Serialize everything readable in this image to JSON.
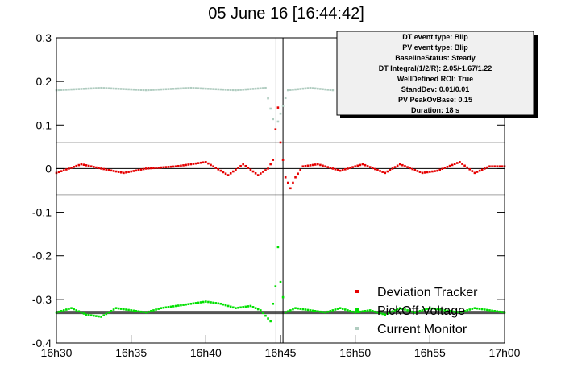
{
  "chart_data": {
    "type": "scatter",
    "title": "05 June 16 [16:44:42]",
    "xlabel": "",
    "ylabel": "",
    "x_ticks": [
      "16h30",
      "16h35",
      "16h40",
      "16h45",
      "16h50",
      "16h55",
      "17h00"
    ],
    "ylim": [
      -0.4,
      0.3
    ],
    "y_ticks": [
      "-0.4",
      "-0.3",
      "-0.2",
      "-0.1",
      "0",
      "0.1",
      "0.2",
      "0.3"
    ],
    "event_window_markers": [
      "16h44m42s",
      "16h45m10s"
    ],
    "reference_lines": [
      0.06,
      -0.06,
      0,
      -0.33
    ],
    "series": [
      {
        "name": "Deviation Tracker",
        "color": "#e60000",
        "x": [
          "16h30m00s",
          "16h31m40s",
          "16h33m00s",
          "16h34m30s",
          "16h36m00s",
          "16h38m00s",
          "16h40m00s",
          "16h41m30s",
          "16h42m30s",
          "16h43m30s",
          "16h44m10s",
          "16h44m30s",
          "16h44m40s",
          "16h44m50s",
          "16h45m00s",
          "16h45m20s",
          "16h45m40s",
          "16h46m00s",
          "16h46m30s",
          "16h47m30s",
          "16h49m00s",
          "16h50m30s",
          "16h52m00s",
          "16h53m00s",
          "16h54m30s",
          "16h55m30s",
          "16h57m00s",
          "16h58m00s",
          "16h59m00s",
          "17h00m00s"
        ],
        "values": [
          -0.01,
          0.01,
          0,
          -0.01,
          0,
          0.005,
          0.015,
          -0.015,
          0.01,
          -0.015,
          0,
          0.02,
          0.09,
          0.14,
          0.06,
          -0.02,
          -0.045,
          -0.02,
          0.005,
          0.01,
          -0.005,
          0.01,
          -0.01,
          0.01,
          -0.01,
          -0.005,
          0.015,
          -0.01,
          0.005,
          0.005
        ]
      },
      {
        "name": "PickOff Voltage",
        "color": "#00e000",
        "x": [
          "16h30m00s",
          "16h31m00s",
          "16h32m00s",
          "16h33m00s",
          "16h34m00s",
          "16h35m00s",
          "16h36m00s",
          "16h37m00s",
          "16h38m00s",
          "16h39m00s",
          "16h40m00s",
          "16h41m00s",
          "16h42m00s",
          "16h43m00s",
          "16h43m40s",
          "16h44m20s",
          "16h44m40s",
          "16h44m50s",
          "16h45m00s",
          "16h45m20s",
          "16h46m00s",
          "16h47m00s",
          "16h48m00s",
          "16h49m00s",
          "16h50m00s",
          "16h51m00s",
          "16h52m00s",
          "16h53m00s",
          "16h54m00s",
          "16h55m00s",
          "16h56m00s",
          "16h57m00s",
          "16h58m00s",
          "16h59m00s",
          "17h00m00s"
        ],
        "values": [
          -0.33,
          -0.32,
          -0.335,
          -0.34,
          -0.32,
          -0.325,
          -0.33,
          -0.32,
          -0.315,
          -0.31,
          -0.305,
          -0.31,
          -0.32,
          -0.315,
          -0.325,
          -0.35,
          -0.27,
          -0.18,
          -0.26,
          -0.33,
          -0.32,
          -0.325,
          -0.33,
          -0.32,
          -0.33,
          -0.325,
          -0.335,
          -0.32,
          -0.33,
          -0.32,
          -0.325,
          -0.33,
          -0.32,
          -0.325,
          -0.33
        ]
      },
      {
        "name": "Current Monitor",
        "color": "#b0ccc0",
        "x": [
          "16h30m00s",
          "16h33m00s",
          "16h36m00s",
          "16h39m00s",
          "16h42m00s",
          "16h44m00s",
          "16h44m40s",
          "16h45m30s",
          "16h47m00s",
          "16h48m30s"
        ],
        "values": [
          0.18,
          0.185,
          0.18,
          0.185,
          0.18,
          0.185,
          0.09,
          0.18,
          0.185,
          0.18
        ]
      }
    ],
    "legend": [
      "Deviation Tracker",
      "PickOff Voltage",
      "Current Monitor"
    ],
    "legend_position": "bottom-right",
    "stats_box": [
      "DT event type: Blip",
      "PV event type: Blip",
      "BaselineStatus: Steady",
      "DT Integral(1/2/R): 2.05/-1.67/1.22",
      "WellDefined ROI: True",
      "StandDev: 0.01/0.01",
      "PV PeakOvBase: 0.15",
      "Duration: 18 s"
    ],
    "grid": false
  }
}
